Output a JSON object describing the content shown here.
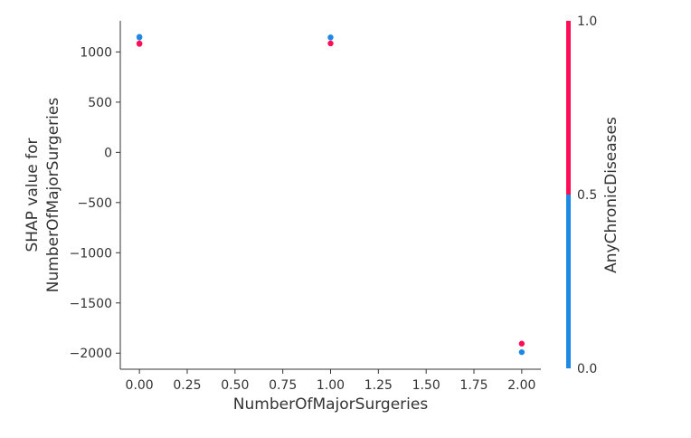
{
  "chart_data": {
    "type": "scatter",
    "xlabel": "NumberOfMajorSurgeries",
    "ylabel_lines": [
      "SHAP value for",
      "NumberOfMajorSurgeries"
    ],
    "xlim": [
      -0.1,
      2.1
    ],
    "ylim": [
      -2160,
      1310
    ],
    "x_ticks": [
      0.0,
      0.25,
      0.5,
      0.75,
      1.0,
      1.25,
      1.5,
      1.75,
      2.0
    ],
    "x_tick_labels": [
      "0.00",
      "0.25",
      "0.50",
      "0.75",
      "1.00",
      "1.25",
      "1.50",
      "1.75",
      "2.00"
    ],
    "y_ticks": [
      1000,
      500,
      0,
      -500,
      -1000,
      -1500,
      -2000
    ],
    "y_tick_labels": [
      "1000",
      "500",
      "0",
      "−500",
      "−1000",
      "−1500",
      "−2000"
    ],
    "colorbar": {
      "label": "AnyChronicDiseases",
      "range": [
        0.0,
        1.0
      ],
      "ticks": [
        1.0,
        0.5,
        0.0
      ],
      "tick_labels": [
        "1.0",
        "0.5",
        "0.0"
      ],
      "low_color": "#1e88e5",
      "high_color": "#ff0d57"
    },
    "points": [
      {
        "x": 0,
        "y": 1150,
        "c": 0
      },
      {
        "x": 0,
        "y": 1145,
        "c": 0
      },
      {
        "x": 0,
        "y": 1085,
        "c": 1
      },
      {
        "x": 0,
        "y": 1080,
        "c": 1
      },
      {
        "x": 1,
        "y": 1145,
        "c": 0
      },
      {
        "x": 1,
        "y": 1085,
        "c": 1
      },
      {
        "x": 2,
        "y": -1905,
        "c": 1
      },
      {
        "x": 2,
        "y": -1990,
        "c": 0
      }
    ]
  }
}
